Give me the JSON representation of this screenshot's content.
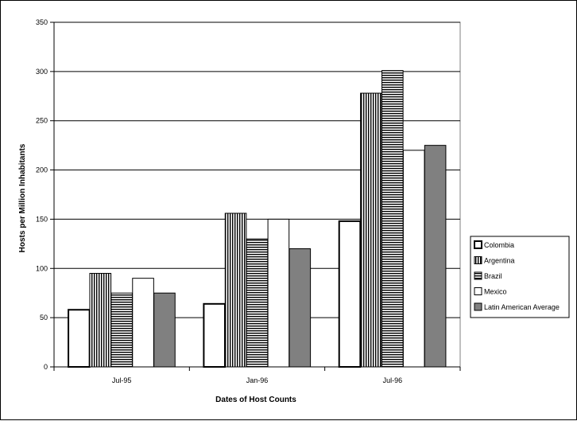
{
  "chart_data": {
    "type": "bar",
    "title": "",
    "xlabel": "Dates of Host Counts",
    "ylabel": "Hosts per Million Inhabitants",
    "ylim": [
      0,
      350
    ],
    "yticks": [
      0,
      50,
      100,
      150,
      200,
      250,
      300,
      350
    ],
    "grid": true,
    "legend_position": "right",
    "categories": [
      "Jul-95",
      "Jan-96",
      "Jul-96"
    ],
    "series": [
      {
        "name": "Colombia",
        "pattern": "white-bold-outline",
        "values": [
          58,
          64,
          148
        ]
      },
      {
        "name": "Argentina",
        "pattern": "vertical-stripes",
        "values": [
          95,
          156,
          278
        ]
      },
      {
        "name": "Brazil",
        "pattern": "horizontal-stripes",
        "values": [
          75,
          130,
          301
        ]
      },
      {
        "name": "Mexico",
        "pattern": "white",
        "values": [
          90,
          150,
          220
        ]
      },
      {
        "name": "Latin American Average",
        "pattern": "solid-gray",
        "color": "#808080",
        "values": [
          75,
          120,
          225
        ]
      }
    ]
  }
}
